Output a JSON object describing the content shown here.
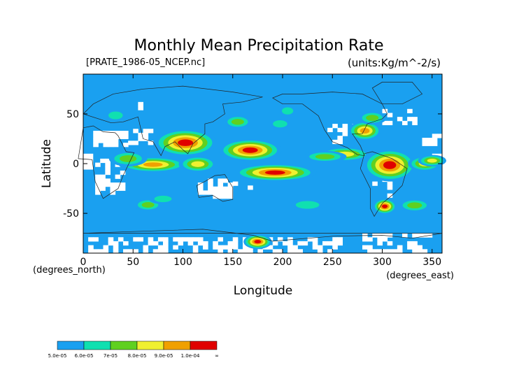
{
  "chart_data": {
    "type": "heatmap",
    "title": "Monthly Mean Precipitation Rate",
    "file_label": "[PRATE_1986-05_NCEP.nc]",
    "units_label": "(units:Kg/m^-2/s)",
    "xlabel": "Longitude",
    "ylabel": "Latitude",
    "x_units": "(degrees_east)",
    "y_units": "(degrees_north)",
    "xlim": [
      0,
      360
    ],
    "ylim": [
      -90,
      90
    ],
    "x_ticks": [
      0,
      50,
      100,
      150,
      200,
      250,
      300,
      350
    ],
    "y_ticks": [
      50,
      0,
      -50
    ],
    "grid": false,
    "colorbar": {
      "placement": "bottom-left",
      "colors": [
        "#1aa0f0",
        "#10e0b0",
        "#60d020",
        "#f0f030",
        "#f0a000",
        "#e00000"
      ],
      "labels": [
        "5.0e-05",
        "6.0e-05",
        "7e-05",
        "8.0e-05",
        "9.0e-05",
        "1.0e-04",
        "∞"
      ]
    },
    "background_color": "#1aa0f0",
    "missing_color": "#ffffff",
    "high_rate_regions": [
      {
        "lon": [
          75,
          130
        ],
        "lat": [
          10,
          32
        ],
        "level": 6
      },
      {
        "lon": [
          140,
          195
        ],
        "lat": [
          5,
          22
        ],
        "level": 6
      },
      {
        "lon": [
          155,
          230
        ],
        "lat": [
          -15,
          -3
        ],
        "level": 6
      },
      {
        "lon": [
          285,
          330
        ],
        "lat": [
          -15,
          12
        ],
        "level": 6
      },
      {
        "lon": [
          295,
          310
        ],
        "lat": [
          -48,
          -38
        ],
        "level": 6
      },
      {
        "lon": [
          40,
          100
        ],
        "lat": [
          -6,
          4
        ],
        "level": 5
      },
      {
        "lon": [
          240,
          285
        ],
        "lat": [
          5,
          14
        ],
        "level": 4
      },
      {
        "lon": [
          270,
          295
        ],
        "lat": [
          26,
          40
        ],
        "level": 5
      },
      {
        "lon": [
          165,
          185
        ],
        "lat": [
          -83,
          -74
        ],
        "level": 6
      }
    ]
  }
}
